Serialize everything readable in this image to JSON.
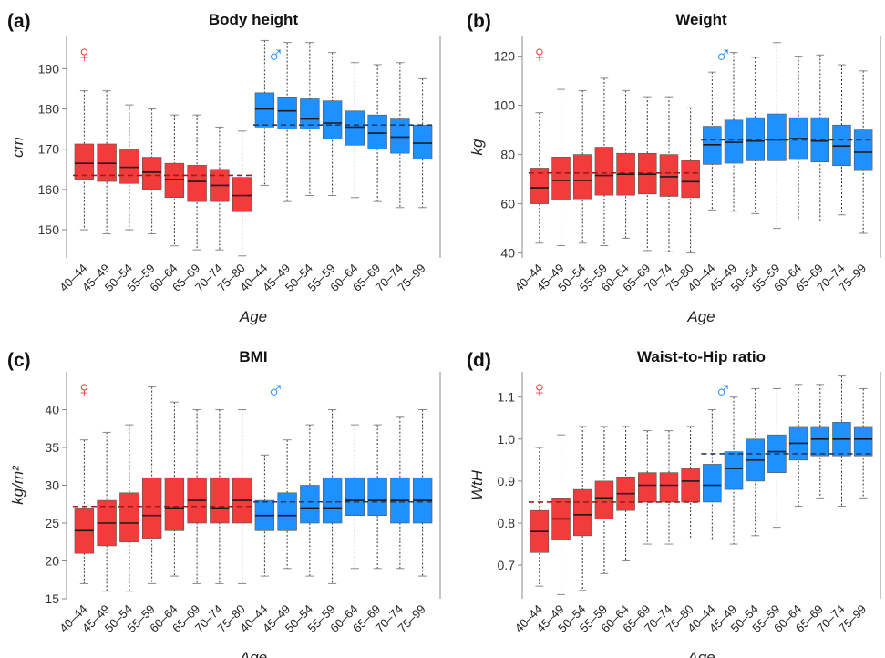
{
  "colors": {
    "female": "#f23c3c",
    "male": "#1e90ff",
    "axis": "#888888",
    "median": "#1a1a1a"
  },
  "symbols": {
    "female": "♀",
    "male": "♂"
  },
  "chart_data": [
    {
      "type": "box",
      "letter": "(a)",
      "title": "Body height",
      "xlabel": "Age",
      "ylabel": "cm",
      "ylim": [
        143,
        198
      ],
      "yticks": [
        150,
        160,
        170,
        180,
        190
      ],
      "categories": [
        "40–44",
        "45–49",
        "50–54",
        "55–59",
        "60–64",
        "65–69",
        "70–74",
        "75–80",
        "40–44",
        "45–49",
        "50–54",
        "55–59",
        "60–64",
        "65–69",
        "70–74",
        "75–99"
      ],
      "series": [
        {
          "group": "female",
          "q1": [
            162.5,
            162,
            161.5,
            160,
            158,
            157,
            157,
            154.5
          ],
          "median": [
            166.5,
            166.5,
            165.5,
            164.3,
            162.5,
            162,
            161,
            158.5
          ],
          "q3": [
            171.3,
            171.3,
            170,
            168,
            166.5,
            166,
            165,
            163
          ],
          "wlow": [
            150,
            149,
            150,
            149,
            146,
            145,
            145,
            143.5
          ],
          "whigh": [
            184.5,
            184.5,
            181,
            180,
            178.5,
            178.5,
            175.5,
            174.5
          ],
          "mean": 163.5
        },
        {
          "group": "male",
          "q1": [
            175.5,
            175,
            175,
            172.5,
            171,
            170,
            169,
            167.5
          ],
          "median": [
            180,
            179.5,
            177.5,
            176.5,
            175.5,
            174,
            173,
            171.5
          ],
          "q3": [
            184,
            183,
            182.5,
            182,
            179.5,
            178.5,
            177.5,
            176
          ],
          "wlow": [
            161,
            157,
            158.5,
            158.5,
            158,
            157,
            155.5,
            155.5
          ],
          "whigh": [
            197,
            196.5,
            196.5,
            194,
            191.5,
            191,
            191.5,
            187.5
          ],
          "mean": 176
        }
      ]
    },
    {
      "type": "box",
      "letter": "(b)",
      "title": "Weight",
      "xlabel": "Age",
      "ylabel": "kg",
      "ylim": [
        38,
        128
      ],
      "yticks": [
        40,
        60,
        80,
        100,
        120
      ],
      "categories": [
        "40–44",
        "45–49",
        "50–54",
        "55–59",
        "60–64",
        "65–69",
        "70–74",
        "75–80",
        "40–44",
        "45–49",
        "50–54",
        "55–59",
        "60–64",
        "65–69",
        "70–74",
        "75–99"
      ],
      "series": [
        {
          "group": "female",
          "q1": [
            60,
            61.5,
            62,
            63.5,
            63.5,
            64,
            63,
            62.5
          ],
          "median": [
            66.5,
            69.5,
            69.5,
            71.5,
            72,
            72,
            71,
            69
          ],
          "q3": [
            74.5,
            79,
            80,
            83,
            80.5,
            80.5,
            80,
            77.5
          ],
          "wlow": [
            44,
            43,
            44,
            43,
            46,
            41,
            40.5,
            40
          ],
          "whigh": [
            97,
            106.5,
            106,
            111,
            106,
            103.5,
            103.5,
            99
          ],
          "mean": 72.5
        },
        {
          "group": "male",
          "q1": [
            76,
            76.5,
            77.5,
            77.5,
            78,
            77,
            75.5,
            73.5
          ],
          "median": [
            84,
            85,
            85.5,
            86,
            86.5,
            85.5,
            83.5,
            81
          ],
          "q3": [
            91.5,
            94,
            95,
            96.5,
            95,
            95,
            92,
            90
          ],
          "wlow": [
            57.5,
            57,
            56,
            50,
            53,
            53,
            55.5,
            48
          ],
          "whigh": [
            113.5,
            121.5,
            119.5,
            125.5,
            120,
            120.5,
            116.5,
            114
          ],
          "mean": 86
        }
      ]
    },
    {
      "type": "box",
      "letter": "(c)",
      "title": "BMI",
      "xlabel": "Age",
      "ylabel": "kg/m²",
      "ylim": [
        15,
        45
      ],
      "yticks": [
        15,
        20,
        25,
        30,
        35,
        40
      ],
      "categories": [
        "40–44",
        "45–49",
        "50–54",
        "55–59",
        "60–64",
        "65–69",
        "70–74",
        "75–80",
        "40–44",
        "45–49",
        "50–54",
        "55–59",
        "60–64",
        "65–69",
        "70–74",
        "75–99"
      ],
      "series": [
        {
          "group": "female",
          "q1": [
            21,
            22,
            22.5,
            23,
            24,
            25,
            25,
            25
          ],
          "median": [
            24,
            25,
            25,
            26,
            27,
            28,
            27,
            28
          ],
          "q3": [
            27,
            28,
            29,
            31,
            31,
            31,
            31,
            31
          ],
          "wlow": [
            17,
            16,
            16,
            17,
            18,
            17,
            17,
            17
          ],
          "whigh": [
            36,
            37,
            38,
            43,
            41,
            40,
            40,
            40
          ],
          "mean": 27.2
        },
        {
          "group": "male",
          "q1": [
            24,
            24,
            25,
            25,
            26,
            26,
            25,
            25
          ],
          "median": [
            26,
            26,
            27,
            27,
            28,
            28,
            28,
            28
          ],
          "q3": [
            28,
            29,
            30,
            31,
            31,
            31,
            31,
            31
          ],
          "wlow": [
            18,
            19,
            18,
            17,
            19,
            19,
            19,
            18
          ],
          "whigh": [
            34,
            36,
            38,
            40,
            38,
            38,
            39,
            40
          ],
          "mean": 27.8
        }
      ]
    },
    {
      "type": "box",
      "letter": "(d)",
      "title": "Waist-to-Hip ratio",
      "xlabel": "Age",
      "ylabel": "WtH",
      "ylim": [
        0.62,
        1.16
      ],
      "yticks": [
        0.7,
        0.8,
        0.9,
        1.0,
        1.1
      ],
      "categories": [
        "40–44",
        "45–49",
        "50–54",
        "55–59",
        "60–64",
        "65–69",
        "70–74",
        "75–80",
        "40–44",
        "45–49",
        "50–54",
        "55–59",
        "60–64",
        "65–69",
        "70–74",
        "75–99"
      ],
      "series": [
        {
          "group": "female",
          "q1": [
            0.73,
            0.76,
            0.77,
            0.81,
            0.83,
            0.85,
            0.85,
            0.85
          ],
          "median": [
            0.78,
            0.81,
            0.82,
            0.86,
            0.87,
            0.89,
            0.89,
            0.9
          ],
          "q3": [
            0.83,
            0.86,
            0.88,
            0.9,
            0.91,
            0.92,
            0.92,
            0.93
          ],
          "wlow": [
            0.65,
            0.63,
            0.64,
            0.68,
            0.71,
            0.75,
            0.75,
            0.76
          ],
          "whigh": [
            0.98,
            1.01,
            1.03,
            1.03,
            1.03,
            1.02,
            1.02,
            1.03
          ],
          "mean": 0.85
        },
        {
          "group": "male",
          "q1": [
            0.85,
            0.88,
            0.9,
            0.92,
            0.95,
            0.96,
            0.96,
            0.96
          ],
          "median": [
            0.89,
            0.93,
            0.95,
            0.97,
            0.99,
            1.0,
            1.0,
            1.0
          ],
          "q3": [
            0.94,
            0.97,
            1.0,
            1.01,
            1.03,
            1.03,
            1.04,
            1.03
          ],
          "wlow": [
            0.76,
            0.75,
            0.77,
            0.79,
            0.84,
            0.86,
            0.84,
            0.86
          ],
          "whigh": [
            1.07,
            1.1,
            1.12,
            1.12,
            1.13,
            1.13,
            1.15,
            1.12
          ],
          "mean": 0.965
        }
      ]
    }
  ]
}
